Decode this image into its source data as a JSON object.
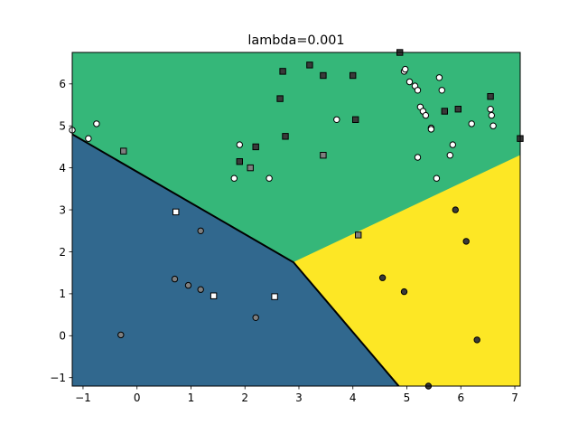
{
  "chart_data": {
    "type": "scatter",
    "title": "lambda=0.001",
    "xlabel": "",
    "ylabel": "",
    "xlim": [
      -1.2,
      7.1
    ],
    "ylim": [
      -1.2,
      6.75
    ],
    "xticks": [
      -1,
      0,
      1,
      2,
      3,
      4,
      5,
      6,
      7
    ],
    "yticks": [
      -1,
      0,
      1,
      2,
      3,
      4,
      5,
      6
    ],
    "grid": false,
    "legend": null,
    "decision_regions": [
      {
        "color": "#31688e",
        "polygon": [
          [
            -1.2,
            4.8
          ],
          [
            2.9,
            1.75
          ],
          [
            4.85,
            -1.2
          ],
          [
            -1.2,
            -1.2
          ]
        ]
      },
      {
        "color": "#35b779",
        "polygon": [
          [
            -1.2,
            4.8
          ],
          [
            -1.2,
            6.75
          ],
          [
            7.1,
            6.75
          ],
          [
            7.1,
            4.3
          ],
          [
            2.9,
            1.75
          ]
        ]
      },
      {
        "color": "#fde725",
        "polygon": [
          [
            2.9,
            1.75
          ],
          [
            7.1,
            4.3
          ],
          [
            7.1,
            -1.2
          ],
          [
            4.85,
            -1.2
          ]
        ]
      }
    ],
    "boundary_line": {
      "color": "#000000",
      "points": [
        [
          -1.2,
          4.8
        ],
        [
          2.9,
          1.75
        ],
        [
          4.85,
          -1.2
        ]
      ]
    },
    "series": [
      {
        "marker": "circle",
        "color": "#ffffff",
        "points": [
          [
            -1.2,
            4.9
          ],
          [
            -0.9,
            4.7
          ],
          [
            -0.75,
            5.05
          ],
          [
            1.8,
            3.75
          ],
          [
            1.9,
            4.55
          ],
          [
            2.45,
            3.75
          ],
          [
            3.7,
            5.15
          ],
          [
            4.95,
            6.3
          ],
          [
            4.97,
            6.35
          ],
          [
            5.05,
            6.05
          ],
          [
            5.15,
            5.95
          ],
          [
            5.2,
            5.85
          ],
          [
            5.25,
            5.45
          ],
          [
            5.3,
            5.35
          ],
          [
            5.35,
            5.25
          ],
          [
            5.45,
            4.95
          ],
          [
            5.55,
            3.75
          ],
          [
            5.6,
            6.15
          ],
          [
            5.65,
            5.85
          ],
          [
            5.8,
            4.3
          ],
          [
            5.85,
            4.55
          ],
          [
            5.2,
            4.25
          ],
          [
            6.2,
            5.05
          ],
          [
            6.55,
            5.4
          ],
          [
            6.57,
            5.25
          ],
          [
            6.6,
            5.0
          ],
          [
            5.45,
            4.92
          ]
        ]
      },
      {
        "marker": "circle",
        "color": "#7f7f7f",
        "points": [
          [
            -0.3,
            0.02
          ],
          [
            0.7,
            1.35
          ],
          [
            0.95,
            1.2
          ],
          [
            1.18,
            2.5
          ],
          [
            1.18,
            1.1
          ],
          [
            2.2,
            0.43
          ]
        ]
      },
      {
        "marker": "circle",
        "color": "#3a3a3a",
        "points": [
          [
            4.55,
            1.38
          ],
          [
            4.95,
            1.05
          ],
          [
            5.9,
            3.0
          ],
          [
            6.1,
            2.25
          ],
          [
            6.3,
            -0.1
          ],
          [
            5.4,
            -1.2
          ]
        ]
      },
      {
        "marker": "square",
        "color": "#ffffff",
        "points": [
          [
            0.72,
            2.95
          ],
          [
            1.42,
            0.95
          ],
          [
            2.55,
            0.93
          ]
        ]
      },
      {
        "marker": "square",
        "color": "#7f7f7f",
        "points": [
          [
            -0.25,
            4.4
          ],
          [
            2.1,
            4.0
          ],
          [
            3.45,
            4.3
          ],
          [
            4.1,
            2.4
          ]
        ]
      },
      {
        "marker": "square",
        "color": "#3a3a3a",
        "points": [
          [
            1.9,
            4.15
          ],
          [
            2.2,
            4.5
          ],
          [
            2.65,
            5.65
          ],
          [
            2.7,
            6.3
          ],
          [
            2.75,
            4.75
          ],
          [
            3.2,
            6.45
          ],
          [
            3.45,
            6.2
          ],
          [
            4.0,
            6.2
          ],
          [
            4.05,
            5.15
          ],
          [
            4.87,
            6.75
          ],
          [
            5.7,
            5.35
          ],
          [
            5.95,
            5.4
          ],
          [
            6.55,
            5.7
          ],
          [
            7.1,
            4.7
          ]
        ]
      }
    ]
  }
}
